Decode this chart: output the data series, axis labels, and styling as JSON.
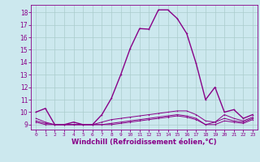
{
  "xlabel": "Windchill (Refroidissement éolien,°C)",
  "background_color": "#cce8ee",
  "grid_color": "#aacccc",
  "line_color": "#880088",
  "xlim": [
    -0.5,
    23.5
  ],
  "ylim": [
    8.6,
    18.6
  ],
  "xticks": [
    0,
    1,
    2,
    3,
    4,
    5,
    6,
    7,
    8,
    9,
    10,
    11,
    12,
    13,
    14,
    15,
    16,
    17,
    18,
    19,
    20,
    21,
    22,
    23
  ],
  "yticks": [
    9,
    10,
    11,
    12,
    13,
    14,
    15,
    16,
    17,
    18
  ],
  "series": [
    [
      10.0,
      10.3,
      9.0,
      9.0,
      9.2,
      9.0,
      9.0,
      9.8,
      11.1,
      13.0,
      15.1,
      16.7,
      16.65,
      18.2,
      18.2,
      17.5,
      16.3,
      13.9,
      11.0,
      12.0,
      10.0,
      10.2,
      9.5,
      9.8
    ],
    [
      9.5,
      9.2,
      9.0,
      9.0,
      9.0,
      9.0,
      9.0,
      9.2,
      9.4,
      9.5,
      9.6,
      9.7,
      9.8,
      9.9,
      10.0,
      10.1,
      10.1,
      9.8,
      9.3,
      9.2,
      9.8,
      9.5,
      9.3,
      9.6
    ],
    [
      9.3,
      9.1,
      9.0,
      9.0,
      9.0,
      9.0,
      9.0,
      9.0,
      9.1,
      9.2,
      9.3,
      9.4,
      9.5,
      9.6,
      9.7,
      9.8,
      9.7,
      9.5,
      9.0,
      9.2,
      9.5,
      9.3,
      9.2,
      9.5
    ],
    [
      9.2,
      9.0,
      9.0,
      9.0,
      9.0,
      9.0,
      9.0,
      9.0,
      9.0,
      9.1,
      9.2,
      9.3,
      9.4,
      9.5,
      9.6,
      9.7,
      9.6,
      9.4,
      9.0,
      9.0,
      9.3,
      9.2,
      9.1,
      9.4
    ]
  ],
  "linewidths": [
    1.0,
    0.7,
    0.7,
    0.7
  ],
  "markersizes": [
    2.5,
    2.0,
    2.0,
    2.0
  ]
}
